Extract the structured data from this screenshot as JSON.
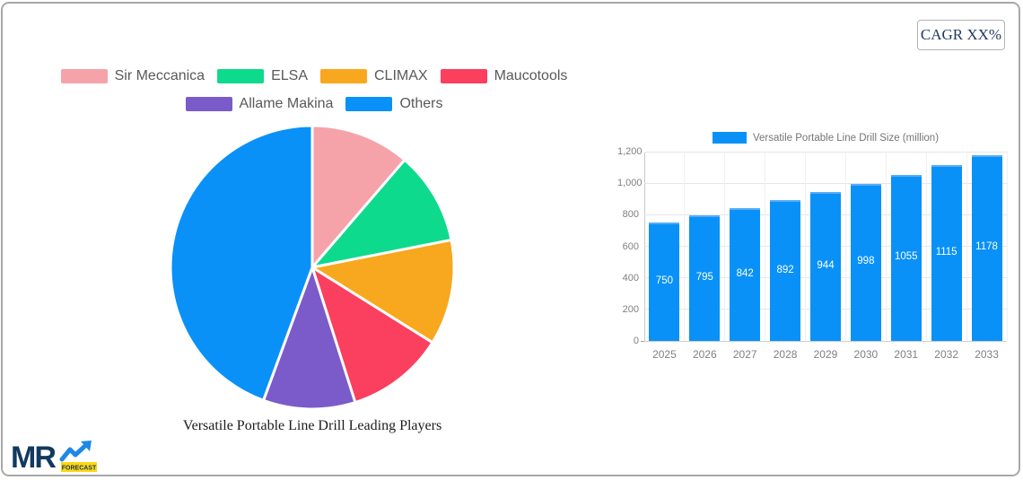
{
  "card": {
    "cagr_label": "CAGR XX%"
  },
  "logo": {
    "text": "MR",
    "badge": "FORECAST"
  },
  "colors": {
    "accent_blue": "#0991f8",
    "navy_text": "#1e3a5f",
    "logo_navy": "#12395f",
    "logo_yellow": "#ffd613",
    "arrow_blue": "#1e88e5"
  },
  "chart_data": [
    {
      "type": "pie",
      "title": "Versatile Portable Line Drill Leading Players",
      "labels": [
        "Sir Meccanica",
        "ELSA",
        "CLIMAX",
        "Maucotools",
        "Allame Makina",
        "Others"
      ],
      "values": [
        11.3,
        10.6,
        12.0,
        11.2,
        10.5,
        44.4
      ],
      "colors": [
        "#F5A3A9",
        "#0EDA8E",
        "#F8A81E",
        "#FA3F5F",
        "#7B5BC9",
        "#0991F8"
      ],
      "legend_position": "top",
      "legend_rows": [
        [
          0,
          1,
          2,
          3
        ],
        [
          4,
          5
        ]
      ],
      "start_angle_deg": 0,
      "direction": "clockwise"
    },
    {
      "type": "bar",
      "legend": "Versatile Portable Line Drill Size (million)",
      "categories": [
        "2025",
        "2026",
        "2027",
        "2028",
        "2029",
        "2030",
        "2031",
        "2032",
        "2033"
      ],
      "values": [
        750,
        795,
        842,
        892,
        944,
        998,
        1055,
        1115,
        1178
      ],
      "bar_color": "#0991F8",
      "value_label_color": "#ffffff",
      "ylim": [
        0,
        1200
      ],
      "y_ticks": [
        0,
        200,
        400,
        600,
        800,
        1000,
        1200
      ],
      "grid": true,
      "legend_position": "top"
    }
  ]
}
